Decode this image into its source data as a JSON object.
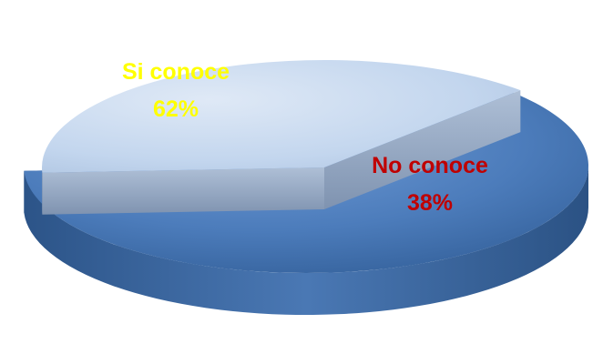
{
  "chart_data": {
    "type": "pie",
    "style": "3d-exploded",
    "series": [
      {
        "label": "Si conoce",
        "value": 62,
        "display": "62%",
        "color": "#4f81bd",
        "label_color": "#ffff00"
      },
      {
        "label": "No conoce",
        "value": 38,
        "display": "38%",
        "color": "#c6d9f0",
        "label_color": "#c00000"
      }
    ]
  }
}
